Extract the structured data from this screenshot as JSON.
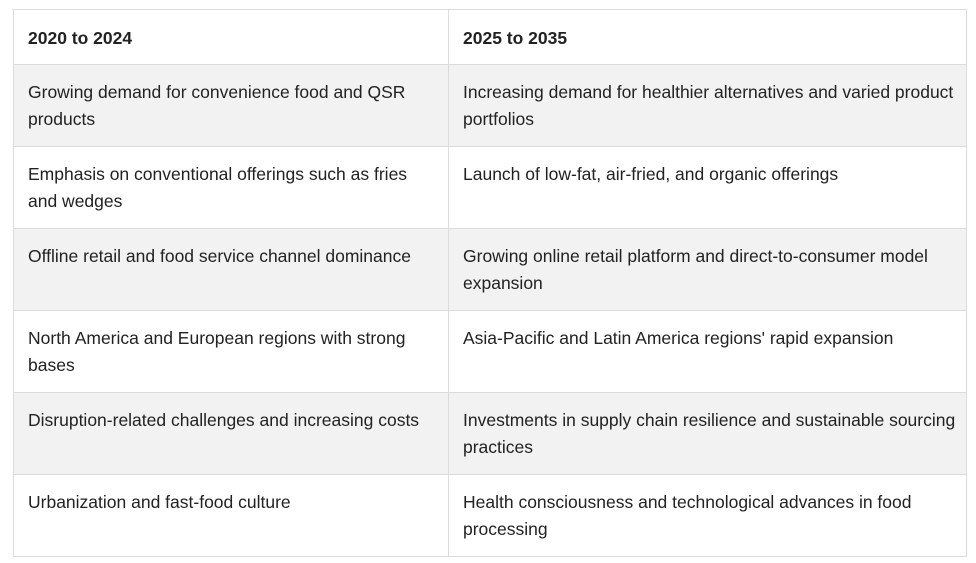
{
  "table": {
    "headers": [
      "2020 to 2024",
      "2025 to 2035"
    ],
    "rows": [
      [
        "Growing demand for convenience food and QSR products",
        "Increasing demand for healthier alternatives and varied product portfolios"
      ],
      [
        "Emphasis on conventional offerings such as fries and wedges",
        "Launch of low-fat, air-fried, and organic offerings"
      ],
      [
        "Offline retail and food service channel dominance",
        "Growing online retail platform and direct-to-consumer model expansion"
      ],
      [
        "North America and European regions with strong bases",
        "Asia-Pacific and Latin America regions' rapid expansion"
      ],
      [
        "Disruption-related challenges and increasing costs",
        "Investments in supply chain resilience and sustainable sourcing practices"
      ],
      [
        "Urbanization and fast-food culture",
        "Health consciousness and technological advances in food processing"
      ]
    ]
  }
}
